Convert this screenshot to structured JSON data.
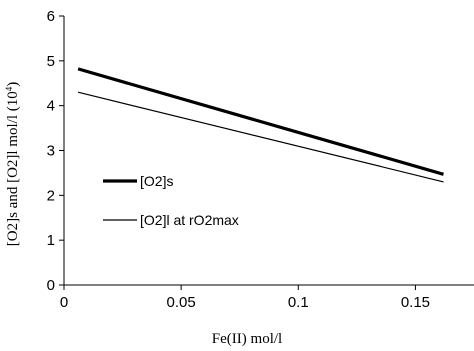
{
  "chart_data": {
    "type": "line",
    "xlabel": "Fe(II) mol/l",
    "ylabel": "[O2]s and [O2]l mol/l (10",
    "ylabel_sup": "4",
    "ylabel_close": ")",
    "xlim": [
      0,
      0.175
    ],
    "ylim": [
      0,
      6
    ],
    "x_ticks": [
      0,
      0.05,
      0.1,
      0.15
    ],
    "x_tick_labels": [
      "0",
      "0.05",
      "0.1",
      "0.15"
    ],
    "y_ticks": [
      0,
      1,
      2,
      3,
      4,
      5,
      6
    ],
    "y_tick_labels": [
      "0",
      "1",
      "2",
      "3",
      "4",
      "5",
      "6"
    ],
    "grid": false,
    "legend": "center-left",
    "series": [
      {
        "name": "[O2]s",
        "x": [
          0.006,
          0.162
        ],
        "y": [
          4.82,
          2.47
        ],
        "color": "#000000",
        "weight": "bold"
      },
      {
        "name": "[O2]l at rO2max",
        "x": [
          0.006,
          0.162
        ],
        "y": [
          4.3,
          2.3
        ],
        "color": "#000000",
        "weight": "thin"
      }
    ]
  }
}
